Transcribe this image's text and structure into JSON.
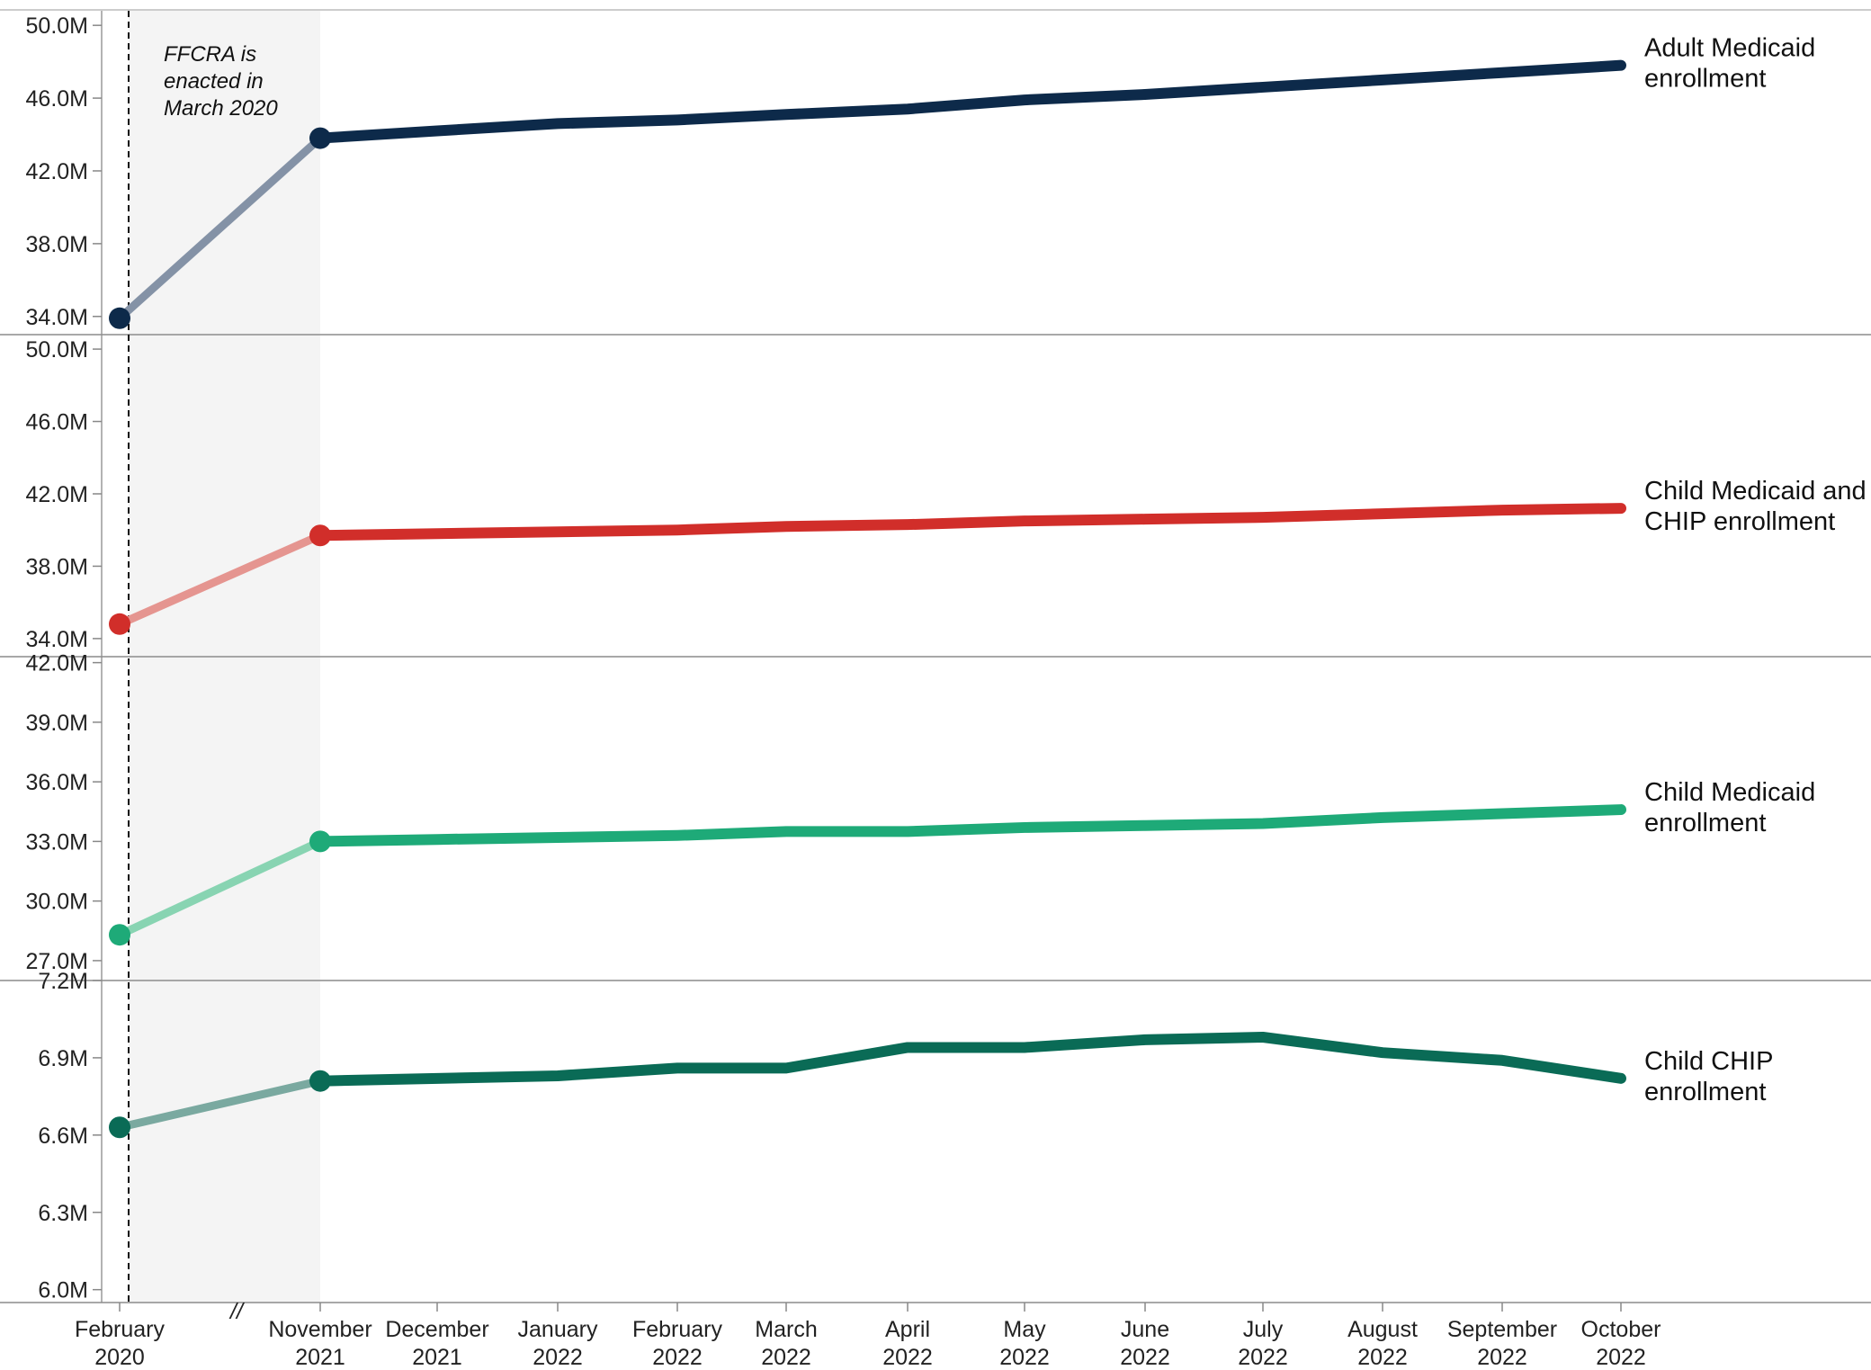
{
  "chart_data": {
    "type": "line",
    "categories": [
      [
        "February",
        "2020"
      ],
      [
        "November",
        "2021"
      ],
      [
        "December",
        "2021"
      ],
      [
        "January",
        "2022"
      ],
      [
        "February",
        "2022"
      ],
      [
        "March",
        "2022"
      ],
      [
        "April",
        "2022"
      ],
      [
        "May",
        "2022"
      ],
      [
        "June",
        "2022"
      ],
      [
        "July",
        "2022"
      ],
      [
        "August",
        "2022"
      ],
      [
        "September",
        "2022"
      ],
      [
        "October",
        "2022"
      ]
    ],
    "axis_break_marker": "//",
    "annotation": [
      "FFCRA is",
      "enacted in",
      "March 2020"
    ],
    "panels": [
      {
        "series_label": [
          "Adult Medicaid",
          "enrollment"
        ],
        "color": "#0d2a4a",
        "pre_color": "#8492a6",
        "ylim": [
          33.0,
          50.8
        ],
        "ticks": [
          "50.0M",
          "46.0M",
          "42.0M",
          "38.0M",
          "34.0M"
        ],
        "tick_values": [
          50,
          46,
          42,
          38,
          34
        ],
        "values": [
          33.9,
          43.8,
          44.2,
          44.6,
          44.8,
          45.1,
          45.4,
          45.9,
          46.2,
          46.6,
          47.0,
          47.4,
          47.8
        ]
      },
      {
        "series_label": [
          "Child Medicaid and",
          "CHIP enrollment"
        ],
        "color": "#d12e2a",
        "pre_color": "#e59590",
        "ylim": [
          33.0,
          50.8
        ],
        "ticks": [
          "50.0M",
          "46.0M",
          "42.0M",
          "38.0M",
          "34.0M"
        ],
        "tick_values": [
          50,
          46,
          42,
          38,
          34
        ],
        "values": [
          34.8,
          39.7,
          39.8,
          39.9,
          40.0,
          40.2,
          40.3,
          40.5,
          40.6,
          40.7,
          40.9,
          41.1,
          41.2
        ]
      },
      {
        "series_label": [
          "Child Medicaid",
          "enrollment"
        ],
        "color": "#1eaa78",
        "pre_color": "#88d4b2",
        "ylim": [
          26.0,
          42.3
        ],
        "ticks": [
          "42.0M",
          "39.0M",
          "36.0M",
          "33.0M",
          "30.0M",
          "27.0M"
        ],
        "tick_values": [
          42,
          39,
          36,
          33,
          30,
          27
        ],
        "values": [
          28.3,
          33.0,
          33.1,
          33.2,
          33.3,
          33.5,
          33.5,
          33.7,
          33.8,
          33.9,
          34.2,
          34.4,
          34.6
        ]
      },
      {
        "series_label": [
          "Child CHIP",
          "enrollment"
        ],
        "color": "#0a6b56",
        "pre_color": "#7aa9a0",
        "ylim": [
          5.95,
          7.2
        ],
        "ticks": [
          "7.2M",
          "6.9M",
          "6.6M",
          "6.3M",
          "6.0M"
        ],
        "tick_values": [
          7.2,
          6.9,
          6.6,
          6.3,
          6.0
        ],
        "values": [
          6.63,
          6.81,
          6.82,
          6.83,
          6.86,
          6.86,
          6.94,
          6.94,
          6.97,
          6.98,
          6.92,
          6.89,
          6.82
        ]
      }
    ]
  }
}
